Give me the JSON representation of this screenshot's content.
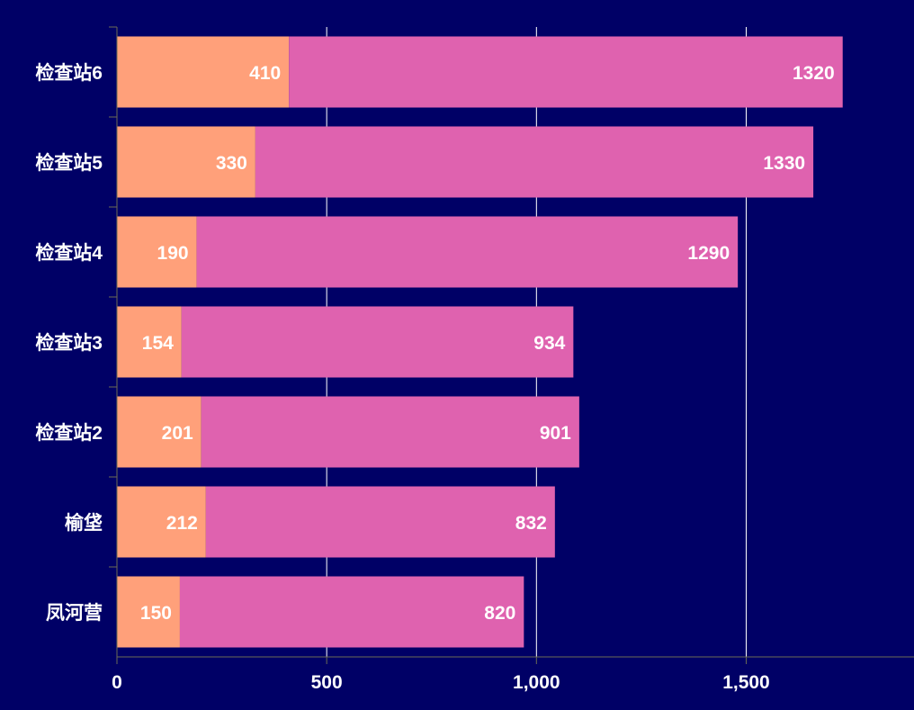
{
  "chart_data": {
    "type": "bar",
    "orientation": "horizontal",
    "stacked": true,
    "title": "",
    "xlabel": "",
    "ylabel": "",
    "categories": [
      "检查站6",
      "检查站5",
      "检查站4",
      "检查站3",
      "检查站2",
      "榆垡",
      "凤河营"
    ],
    "series": [
      {
        "values": [
          410,
          330,
          190,
          154,
          201,
          212,
          150
        ],
        "color": "#FFA07A"
      },
      {
        "values": [
          1320,
          1330,
          1290,
          934,
          901,
          832,
          820
        ],
        "color": "#DF62AF"
      }
    ],
    "xlim": [
      0,
      1900
    ],
    "x_ticks": [
      0,
      500,
      1000,
      1500
    ],
    "x_tick_labels": [
      "0",
      "500",
      "1,000",
      "1,500"
    ],
    "vertical_grid": true,
    "data_labels": true
  },
  "colors": {
    "background": "#000066",
    "text": "#FFFFFF",
    "grid": "#FFFFFF",
    "axis": "#6B6B55"
  }
}
